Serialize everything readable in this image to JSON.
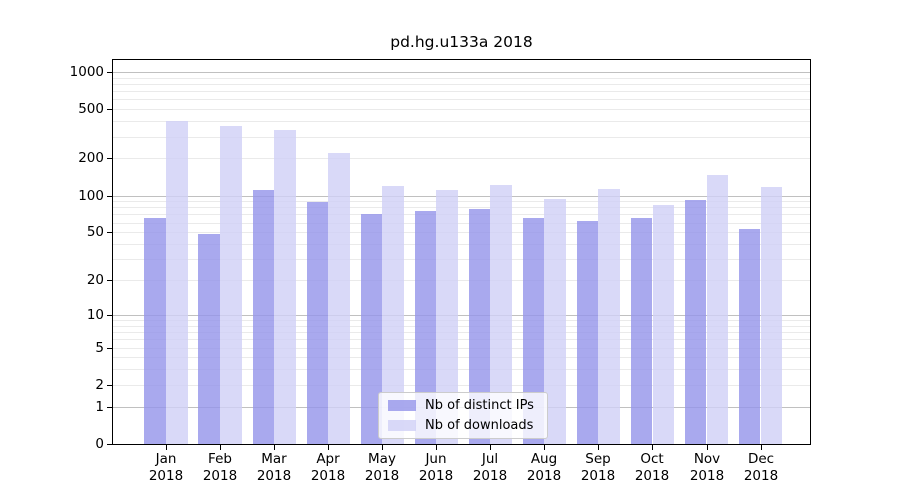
{
  "title": "pd.hg.u133a 2018",
  "chart_data": {
    "type": "bar",
    "title": "pd.hg.u133a 2018",
    "categories": [
      "Jan 2018",
      "Feb 2018",
      "Mar 2018",
      "Apr 2018",
      "May 2018",
      "Jun 2018",
      "Jul 2018",
      "Aug 2018",
      "Sep 2018",
      "Oct 2018",
      "Nov 2018",
      "Dec 2018"
    ],
    "x_tick_line1": [
      "Jan",
      "Feb",
      "Mar",
      "Apr",
      "May",
      "Jun",
      "Jul",
      "Aug",
      "Sep",
      "Oct",
      "Nov",
      "Dec"
    ],
    "x_tick_line2": [
      "2018",
      "2018",
      "2018",
      "2018",
      "2018",
      "2018",
      "2018",
      "2018",
      "2018",
      "2018",
      "2018",
      "2018"
    ],
    "series": [
      {
        "name": "Nb of distinct IPs",
        "color": "#a9a9ee",
        "values": [
          66,
          48,
          111,
          89,
          71,
          75,
          77,
          66,
          62,
          66,
          92,
          53
        ]
      },
      {
        "name": "Nb of downloads",
        "color": "#d9d9f8",
        "values": [
          400,
          368,
          340,
          221,
          120,
          112,
          122,
          94,
          114,
          83,
          147,
          118
        ]
      }
    ],
    "xlabel": "",
    "ylabel": "",
    "yscale": "log1p",
    "y_ticks": [
      0,
      1,
      2,
      5,
      10,
      20,
      50,
      100,
      200,
      500,
      1000
    ],
    "y_top_value": 1250,
    "grid": {
      "major_lines": [
        1,
        10,
        100,
        1000
      ],
      "minor_multipliers": [
        2,
        3,
        4,
        5,
        6,
        7,
        8,
        9
      ],
      "orientation": "horizontal"
    },
    "legend": {
      "position": "inside-bottom-center",
      "entries": [
        "Nb of distinct IPs",
        "Nb of downloads"
      ]
    }
  },
  "colors": {
    "background": "#ffffff",
    "bar_distinct_ips": "#a9a9ee",
    "bar_downloads": "#d9d9f8",
    "grid_major": "#c0c0c0",
    "grid_minor": "#eaeaea",
    "axis_spine": "#000000",
    "text": "#000000",
    "legend_border": "#cccccc",
    "legend_background": "rgba(255,255,255,0.8)"
  }
}
